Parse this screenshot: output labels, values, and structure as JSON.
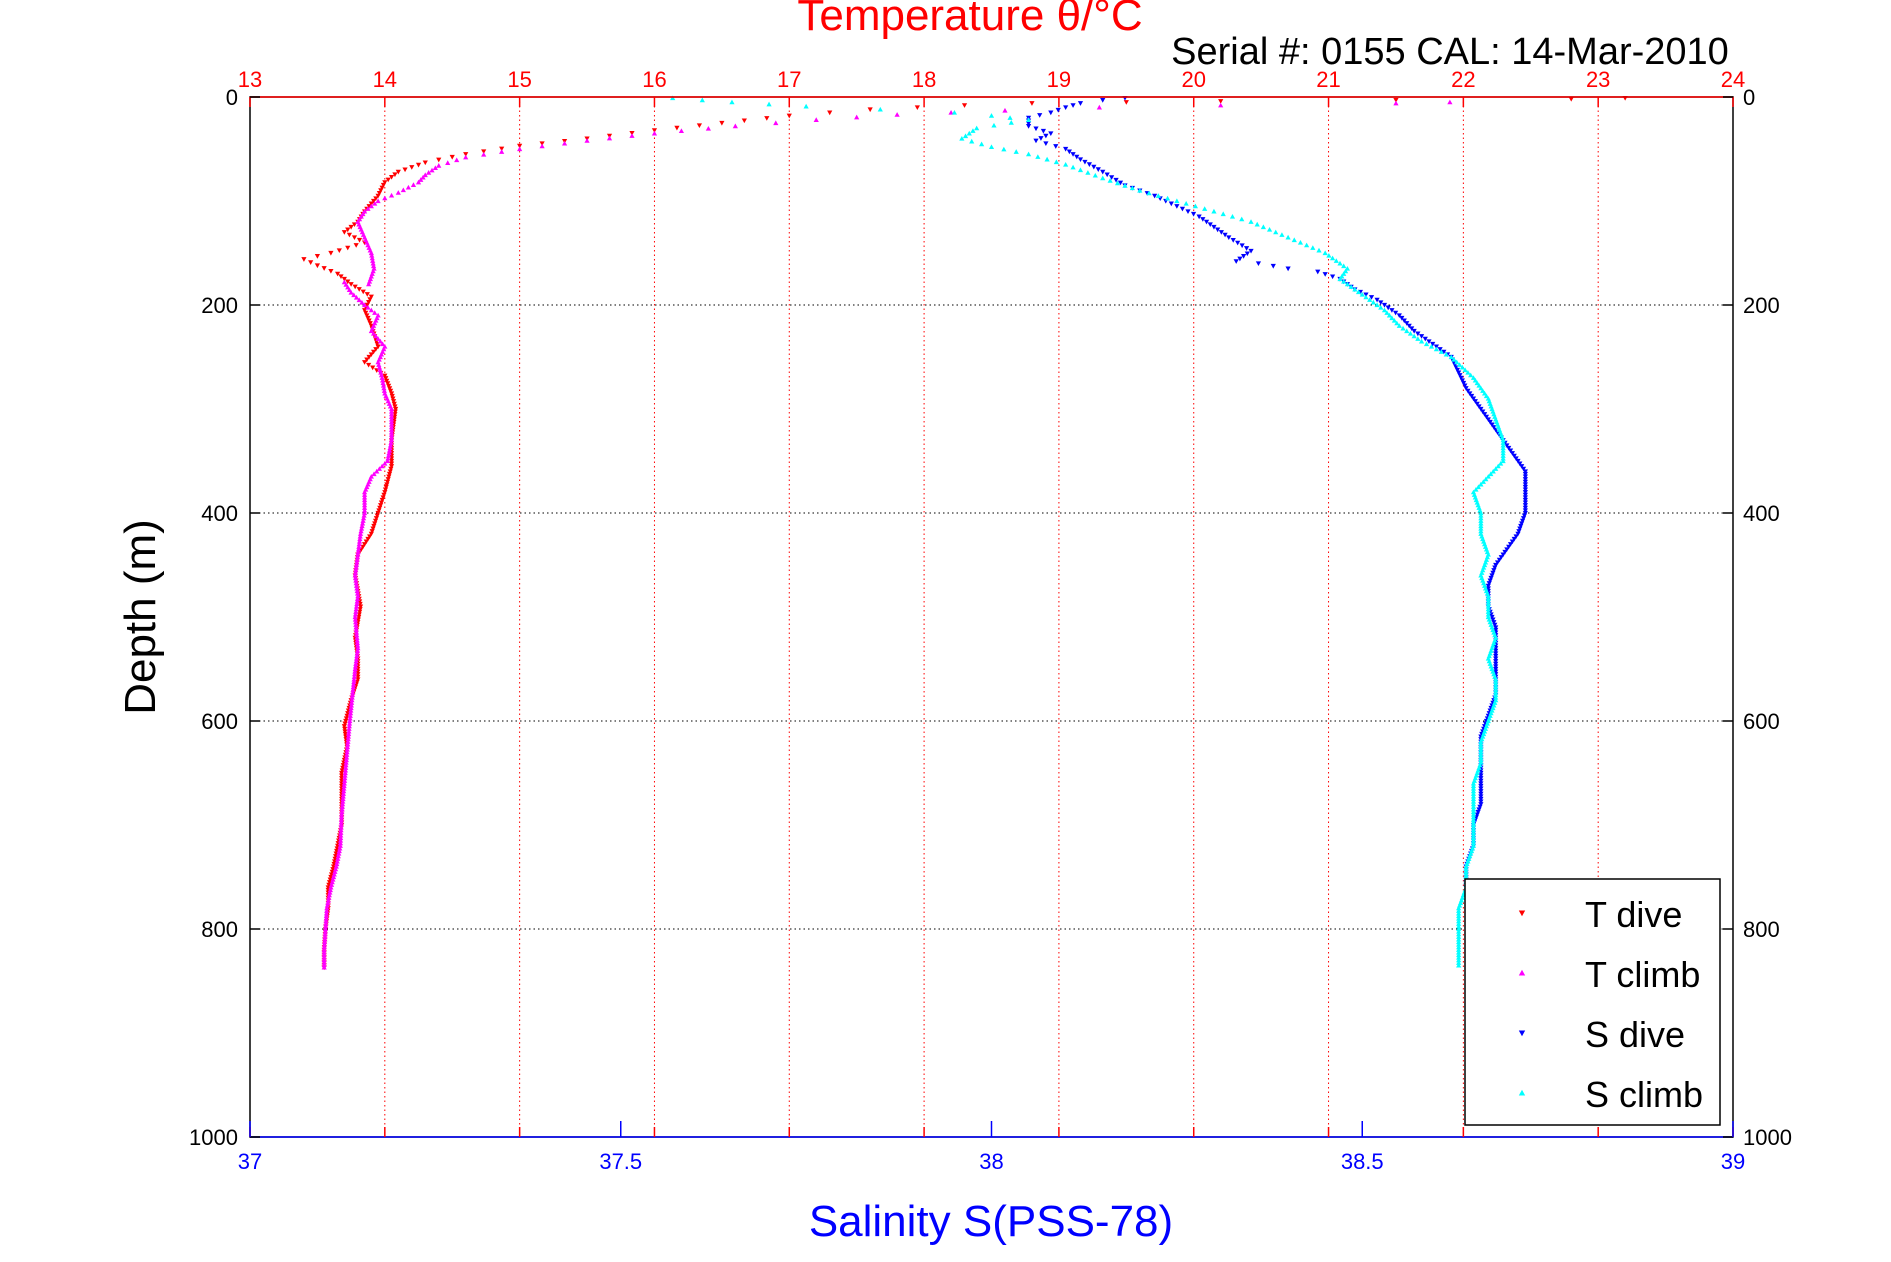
{
  "chart_data": {
    "type": "scatter",
    "title": "Temperature θ/°C",
    "subtitle": "Serial #: 0155  CAL: 14-Mar-2010",
    "ylabel": "Depth (m)",
    "xlabel": "Salinity S(PSS-78)",
    "y_reversed": true,
    "ylim": [
      0,
      1000
    ],
    "y_ticks": [
      "0",
      "200",
      "400",
      "600",
      "800",
      "1000"
    ],
    "temperature_axis": {
      "position": "top",
      "lim": [
        13,
        24
      ],
      "ticks": [
        "13",
        "14",
        "15",
        "16",
        "17",
        "18",
        "19",
        "20",
        "21",
        "22",
        "23",
        "24"
      ],
      "color": "#ff0000"
    },
    "salinity_axis": {
      "position": "bottom",
      "lim": [
        37,
        39
      ],
      "ticks": [
        "37",
        "37.5",
        "38",
        "38.5",
        "39"
      ],
      "color": "#0000ff"
    },
    "grid": true,
    "legend_position": "bottom-right",
    "series": [
      {
        "name": "T dive",
        "axis": "temperature",
        "color": "#ff0000",
        "marker": "triangle-down",
        "points": [
          [
            23.2,
            1
          ],
          [
            22.8,
            2
          ],
          [
            21.5,
            3
          ],
          [
            20.2,
            4
          ],
          [
            19.5,
            5
          ],
          [
            18.8,
            6
          ],
          [
            18.3,
            8
          ],
          [
            17.6,
            12
          ],
          [
            17.0,
            18
          ],
          [
            16.5,
            25
          ],
          [
            16.0,
            32
          ],
          [
            15.5,
            40
          ],
          [
            15.0,
            47
          ],
          [
            14.6,
            55
          ],
          [
            14.3,
            63
          ],
          [
            14.1,
            72
          ],
          [
            14.0,
            82
          ],
          [
            13.95,
            95
          ],
          [
            13.85,
            110
          ],
          [
            13.8,
            120
          ],
          [
            13.7,
            130
          ],
          [
            13.85,
            140
          ],
          [
            13.6,
            150
          ],
          [
            13.4,
            156
          ],
          [
            13.5,
            162
          ],
          [
            13.65,
            170
          ],
          [
            13.75,
            180
          ],
          [
            13.9,
            192
          ],
          [
            13.85,
            205
          ],
          [
            13.9,
            220
          ],
          [
            13.95,
            240
          ],
          [
            13.85,
            255
          ],
          [
            14.0,
            268
          ],
          [
            14.05,
            285
          ],
          [
            14.08,
            300
          ],
          [
            14.05,
            330
          ],
          [
            14.05,
            355
          ],
          [
            14.0,
            380
          ],
          [
            13.95,
            400
          ],
          [
            13.9,
            420
          ],
          [
            13.8,
            440
          ],
          [
            13.78,
            460
          ],
          [
            13.82,
            490
          ],
          [
            13.78,
            520
          ],
          [
            13.8,
            540
          ],
          [
            13.8,
            560
          ],
          [
            13.75,
            580
          ],
          [
            13.7,
            605
          ],
          [
            13.72,
            625
          ],
          [
            13.68,
            650
          ],
          [
            13.68,
            680
          ],
          [
            13.68,
            700
          ],
          [
            13.65,
            720
          ],
          [
            13.62,
            740
          ],
          [
            13.58,
            760
          ],
          [
            13.58,
            780
          ],
          [
            13.56,
            800
          ],
          [
            13.55,
            820
          ],
          [
            13.55,
            837
          ]
        ]
      },
      {
        "name": "T climb",
        "axis": "temperature",
        "color": "#ff00ff",
        "marker": "triangle-up",
        "points": [
          [
            21.9,
            5
          ],
          [
            21.5,
            6
          ],
          [
            20.2,
            8
          ],
          [
            19.3,
            10
          ],
          [
            18.6,
            13
          ],
          [
            17.8,
            17
          ],
          [
            17.2,
            22
          ],
          [
            16.6,
            28
          ],
          [
            16.0,
            35
          ],
          [
            15.5,
            42
          ],
          [
            15.0,
            50
          ],
          [
            14.6,
            58
          ],
          [
            14.4,
            66
          ],
          [
            14.3,
            75
          ],
          [
            14.25,
            82
          ],
          [
            14.1,
            92
          ],
          [
            13.95,
            100
          ],
          [
            13.85,
            110
          ],
          [
            13.8,
            120
          ],
          [
            13.85,
            135
          ],
          [
            13.9,
            150
          ],
          [
            13.92,
            165
          ],
          [
            13.88,
            180
          ],
          [
            13.7,
            178
          ],
          [
            13.75,
            188
          ],
          [
            13.85,
            200
          ],
          [
            13.95,
            210
          ],
          [
            13.9,
            225
          ],
          [
            14.0,
            240
          ],
          [
            13.95,
            255
          ],
          [
            13.98,
            270
          ],
          [
            14.0,
            285
          ],
          [
            14.05,
            300
          ],
          [
            14.05,
            330
          ],
          [
            14.02,
            350
          ],
          [
            13.9,
            365
          ],
          [
            13.85,
            380
          ],
          [
            13.85,
            400
          ],
          [
            13.82,
            420
          ],
          [
            13.8,
            440
          ],
          [
            13.78,
            460
          ],
          [
            13.8,
            480
          ],
          [
            13.78,
            500
          ],
          [
            13.8,
            530
          ],
          [
            13.78,
            550
          ],
          [
            13.76,
            575
          ],
          [
            13.74,
            600
          ],
          [
            13.72,
            630
          ],
          [
            13.7,
            660
          ],
          [
            13.68,
            690
          ],
          [
            13.67,
            720
          ],
          [
            13.64,
            740
          ],
          [
            13.6,
            760
          ],
          [
            13.57,
            780
          ],
          [
            13.56,
            800
          ],
          [
            13.55,
            820
          ],
          [
            13.55,
            837
          ]
        ]
      },
      {
        "name": "S dive",
        "axis": "salinity",
        "color": "#0000ff",
        "marker": "triangle-down",
        "points": [
          [
            38.18,
            1
          ],
          [
            38.15,
            3
          ],
          [
            38.12,
            6
          ],
          [
            38.1,
            10
          ],
          [
            38.08,
            15
          ],
          [
            38.05,
            20
          ],
          [
            38.05,
            28
          ],
          [
            38.08,
            35
          ],
          [
            38.06,
            42
          ],
          [
            38.1,
            50
          ],
          [
            38.12,
            60
          ],
          [
            38.15,
            72
          ],
          [
            38.18,
            85
          ],
          [
            38.22,
            95
          ],
          [
            38.25,
            105
          ],
          [
            38.28,
            115
          ],
          [
            38.3,
            125
          ],
          [
            38.32,
            135
          ],
          [
            38.35,
            148
          ],
          [
            38.33,
            158
          ],
          [
            38.36,
            160
          ],
          [
            38.4,
            165
          ],
          [
            38.44,
            168
          ],
          [
            38.47,
            175
          ],
          [
            38.49,
            185
          ],
          [
            38.52,
            195
          ],
          [
            38.55,
            210
          ],
          [
            38.57,
            225
          ],
          [
            38.6,
            240
          ],
          [
            38.62,
            250
          ],
          [
            38.63,
            265
          ],
          [
            38.64,
            280
          ],
          [
            38.66,
            300
          ],
          [
            38.68,
            320
          ],
          [
            38.7,
            340
          ],
          [
            38.72,
            360
          ],
          [
            38.72,
            380
          ],
          [
            38.72,
            400
          ],
          [
            38.71,
            420
          ],
          [
            38.7,
            430
          ],
          [
            38.68,
            450
          ],
          [
            38.67,
            470
          ],
          [
            38.67,
            490
          ],
          [
            38.68,
            510
          ],
          [
            38.68,
            530
          ],
          [
            38.68,
            555
          ],
          [
            38.68,
            575
          ],
          [
            38.67,
            595
          ],
          [
            38.66,
            615
          ],
          [
            38.66,
            640
          ],
          [
            38.66,
            660
          ],
          [
            38.66,
            680
          ],
          [
            38.65,
            700
          ],
          [
            38.65,
            720
          ],
          [
            38.64,
            740
          ],
          [
            38.64,
            760
          ]
        ]
      },
      {
        "name": "S climb",
        "axis": "salinity",
        "color": "#00ffff",
        "marker": "triangle-up",
        "points": [
          [
            37.57,
            1
          ],
          [
            37.65,
            5
          ],
          [
            37.75,
            9
          ],
          [
            37.85,
            12
          ],
          [
            37.95,
            15
          ],
          [
            38.0,
            18
          ],
          [
            38.05,
            22
          ],
          [
            37.98,
            30
          ],
          [
            37.96,
            40
          ],
          [
            38.0,
            48
          ],
          [
            38.05,
            55
          ],
          [
            38.1,
            65
          ],
          [
            38.15,
            78
          ],
          [
            38.2,
            90
          ],
          [
            38.25,
            100
          ],
          [
            38.3,
            110
          ],
          [
            38.35,
            120
          ],
          [
            38.4,
            135
          ],
          [
            38.45,
            150
          ],
          [
            38.48,
            165
          ],
          [
            38.47,
            175
          ],
          [
            38.5,
            190
          ],
          [
            38.53,
            205
          ],
          [
            38.55,
            220
          ],
          [
            38.58,
            235
          ],
          [
            38.62,
            250
          ],
          [
            38.65,
            270
          ],
          [
            38.67,
            290
          ],
          [
            38.68,
            310
          ],
          [
            38.69,
            330
          ],
          [
            38.69,
            350
          ],
          [
            38.67,
            365
          ],
          [
            38.65,
            380
          ],
          [
            38.66,
            400
          ],
          [
            38.66,
            420
          ],
          [
            38.67,
            440
          ],
          [
            38.66,
            460
          ],
          [
            38.67,
            480
          ],
          [
            38.67,
            500
          ],
          [
            38.68,
            520
          ],
          [
            38.67,
            540
          ],
          [
            38.68,
            560
          ],
          [
            38.68,
            580
          ],
          [
            38.67,
            600
          ],
          [
            38.66,
            620
          ],
          [
            38.66,
            640
          ],
          [
            38.65,
            660
          ],
          [
            38.65,
            680
          ],
          [
            38.65,
            700
          ],
          [
            38.65,
            720
          ],
          [
            38.64,
            740
          ],
          [
            38.64,
            760
          ],
          [
            38.63,
            780
          ],
          [
            38.63,
            800
          ],
          [
            38.63,
            820
          ],
          [
            38.63,
            835
          ]
        ]
      }
    ]
  }
}
